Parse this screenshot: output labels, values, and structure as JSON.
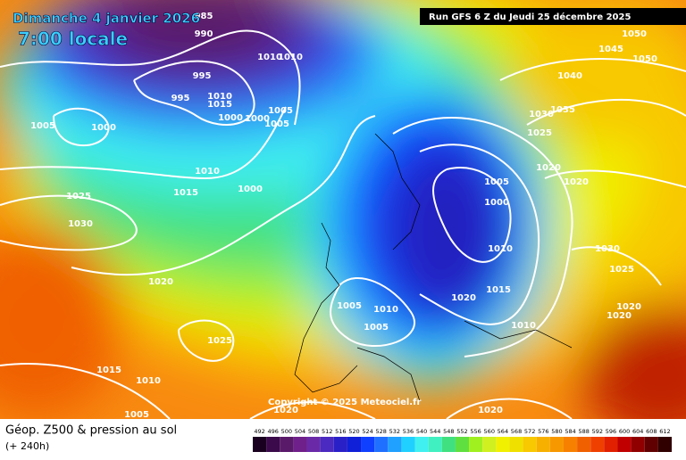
{
  "header": {
    "date": "Dimanche 4 janvier 2026",
    "time": "7:00 locale",
    "run": "Run GFS 6 Z du Jeudi 25 décembre 2025"
  },
  "copyright": "Copyright © 2025 Meteociel.fr",
  "footer": {
    "title": "Géop. Z500 & pression au sol",
    "lead": "(+ 240h)"
  },
  "isobar_labels": [
    "985",
    "990",
    "995",
    "995",
    "1010",
    "1010",
    "1010",
    "1015",
    "1000",
    "1005",
    "1000",
    "1005",
    "1005",
    "1000",
    "1010",
    "1015",
    "1000",
    "1025",
    "1030",
    "1020",
    "1025",
    "1015",
    "1010",
    "1005",
    "1005",
    "1010",
    "1005",
    "1020",
    "1015",
    "1010",
    "1010",
    "1000",
    "1005",
    "1020",
    "1020",
    "1020",
    "1020",
    "1025",
    "1030",
    "1035",
    "1040",
    "1045",
    "1050",
    "1050",
    "1030",
    "1025",
    "1020",
    "1020"
  ],
  "colorbar": {
    "values": [
      492,
      496,
      500,
      504,
      508,
      512,
      516,
      520,
      524,
      528,
      532,
      536,
      540,
      544,
      548,
      552,
      556,
      560,
      564,
      568,
      572,
      576,
      580,
      584,
      588,
      592,
      596,
      600,
      604,
      608,
      612
    ],
    "colors": [
      "#1a0020",
      "#3a0a4a",
      "#5a1a6a",
      "#70208a",
      "#6a2aa8",
      "#4a2ac0",
      "#2a20c8",
      "#1020d8",
      "#1040ff",
      "#2070ff",
      "#20a0ff",
      "#20d0ff",
      "#40f0f0",
      "#40f0c0",
      "#40e080",
      "#60e040",
      "#a0f020",
      "#d0f020",
      "#f0f000",
      "#f0e000",
      "#f8c800",
      "#f8b000",
      "#f89800",
      "#f88000",
      "#f06000",
      "#f04000",
      "#e02000",
      "#c00000",
      "#900000",
      "#600000",
      "#300000"
    ]
  }
}
